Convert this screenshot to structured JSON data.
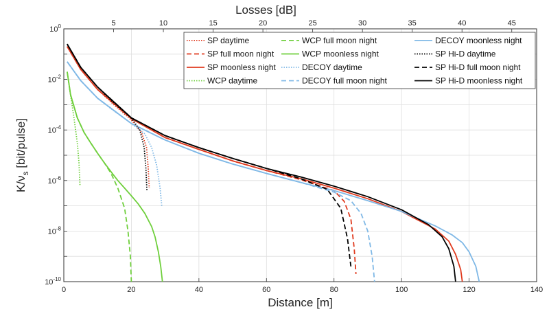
{
  "chart_data": {
    "type": "line",
    "xlabel": "Distance [m]",
    "x2label": "Losses [dB]",
    "ylabel": "K/ν",
    "ylabel_sub": "s",
    "ylabel_unit": " [bit/pulse]",
    "xlim": [
      0,
      140
    ],
    "x_ticks": [
      0,
      20,
      40,
      60,
      80,
      100,
      120,
      140
    ],
    "x2lim": [
      0,
      47.5
    ],
    "x2_ticks": [
      5,
      10,
      15,
      20,
      25,
      30,
      35,
      40,
      45
    ],
    "ylim": [
      1e-10,
      1
    ],
    "y_scale": "log",
    "y_tick_exponents": [
      0,
      -2,
      -4,
      -6,
      -8,
      -10
    ],
    "grid": true,
    "legend_position": "top-right",
    "legend_columns": 3,
    "colors": {
      "SP": "#e03a1e",
      "WCP": "#6fcf3c",
      "DECOY": "#7fb8e6",
      "HiD": "#000000"
    },
    "series": [
      {
        "name": "SP daytime",
        "color": "#e03a1e",
        "dash": "dotted",
        "x": [
          1,
          5,
          10,
          15,
          20,
          23,
          24.5,
          25,
          25.3
        ],
        "y": [
          0.2,
          0.025,
          0.004,
          0.00095,
          0.00025,
          8e-05,
          2e-05,
          3e-06,
          5e-07
        ]
      },
      {
        "name": "SP full moon night",
        "color": "#e03a1e",
        "dash": "dashed",
        "x": [
          1,
          5,
          10,
          20,
          30,
          40,
          50,
          60,
          70,
          80,
          83,
          85,
          86,
          86.5
        ],
        "y": [
          0.2,
          0.025,
          0.004,
          0.00028,
          5e-05,
          1.7e-05,
          6e-06,
          2.5e-06,
          1.1e-06,
          4e-07,
          1.5e-07,
          3e-08,
          2e-09,
          2e-10
        ]
      },
      {
        "name": "SP moonless night",
        "color": "#e03a1e",
        "dash": "solid",
        "x": [
          1,
          5,
          10,
          20,
          30,
          40,
          50,
          60,
          70,
          80,
          90,
          100,
          110,
          114,
          116,
          117.5,
          118
        ],
        "y": [
          0.2,
          0.025,
          0.004,
          0.00028,
          5e-05,
          1.7e-05,
          6e-06,
          2.5e-06,
          1.2e-06,
          5e-07,
          1.9e-07,
          6e-08,
          1.2e-08,
          4e-09,
          1.2e-09,
          3e-10,
          1e-10
        ]
      },
      {
        "name": "WCP daytime",
        "color": "#6fcf3c",
        "dash": "dotted",
        "x": [
          1,
          2,
          3,
          4,
          4.5,
          4.8
        ],
        "y": [
          0.02,
          0.0025,
          0.0003,
          3e-05,
          5e-06,
          6e-07
        ]
      },
      {
        "name": "WCP full moon night",
        "color": "#6fcf3c",
        "dash": "dashed",
        "x": [
          1,
          2,
          4,
          6,
          8,
          10,
          12,
          14,
          16,
          18,
          19,
          19.7,
          20
        ],
        "y": [
          0.02,
          0.0025,
          0.0003,
          8e-05,
          3e-05,
          1.2e-05,
          5e-06,
          1.9e-06,
          5e-07,
          8e-08,
          1e-08,
          1e-09,
          1e-10
        ]
      },
      {
        "name": "WCP moonless night",
        "color": "#6fcf3c",
        "dash": "solid",
        "x": [
          1,
          2,
          4,
          6,
          8,
          10,
          12,
          14,
          16,
          18,
          20,
          22,
          24,
          26,
          27,
          28,
          28.7,
          29.2
        ],
        "y": [
          0.02,
          0.0025,
          0.0003,
          8e-05,
          3e-05,
          1.2e-05,
          5e-06,
          2.2e-06,
          1e-06,
          5e-07,
          2.5e-07,
          1.2e-07,
          5e-08,
          1.5e-08,
          6e-09,
          1.5e-09,
          4e-10,
          1e-10
        ]
      },
      {
        "name": "DECOY daytime",
        "color": "#7fb8e6",
        "dash": "dotted",
        "x": [
          1,
          5,
          10,
          15,
          20,
          24,
          26,
          27.5,
          28.5,
          29
        ],
        "y": [
          0.05,
          0.009,
          0.0018,
          0.00055,
          0.00018,
          7e-05,
          2e-05,
          4e-06,
          5e-07,
          1e-07
        ]
      },
      {
        "name": "DECOY full moon night",
        "color": "#7fb8e6",
        "dash": "dashed",
        "x": [
          1,
          5,
          10,
          20,
          30,
          40,
          50,
          60,
          70,
          80,
          85,
          88,
          90,
          91.3,
          92
        ],
        "y": [
          0.05,
          0.009,
          0.0018,
          0.00018,
          4e-05,
          1.2e-05,
          4.5e-06,
          1.9e-06,
          8.5e-07,
          3.5e-07,
          1.6e-07,
          5e-08,
          1e-08,
          1e-09,
          1e-10
        ]
      },
      {
        "name": "DECOY moonless night",
        "color": "#7fb8e6",
        "dash": "solid",
        "x": [
          1,
          5,
          10,
          20,
          30,
          40,
          50,
          60,
          70,
          80,
          90,
          100,
          110,
          115,
          118,
          120,
          122,
          123
        ],
        "y": [
          0.05,
          0.009,
          0.0018,
          0.00018,
          4e-05,
          1.2e-05,
          4.5e-06,
          1.9e-06,
          8.5e-07,
          4e-07,
          1.6e-07,
          6e-08,
          1.6e-08,
          7e-09,
          3.5e-09,
          1.5e-09,
          4e-10,
          1e-10
        ]
      },
      {
        "name": "SP Hi-D daytime",
        "color": "#000000",
        "dash": "dotted",
        "x": [
          1,
          5,
          10,
          15,
          20,
          22.5,
          23.8,
          24.3,
          24.6
        ],
        "y": [
          0.25,
          0.03,
          0.005,
          0.0011,
          0.0003,
          0.0001,
          2e-05,
          3e-06,
          4e-07
        ]
      },
      {
        "name": "SP Hi-D full moon night",
        "color": "#000000",
        "dash": "dashed",
        "x": [
          1,
          5,
          10,
          20,
          30,
          40,
          50,
          60,
          70,
          78,
          82,
          84,
          85
        ],
        "y": [
          0.25,
          0.03,
          0.005,
          0.0003,
          6e-05,
          2e-05,
          7.5e-06,
          3e-06,
          1.2e-06,
          4.5e-07,
          8e-08,
          5e-09,
          4e-10
        ]
      },
      {
        "name": "SP Hi-D moonless night",
        "color": "#000000",
        "dash": "solid",
        "x": [
          1,
          5,
          10,
          20,
          30,
          40,
          50,
          60,
          70,
          80,
          90,
          100,
          108,
          112,
          114,
          115.5,
          116
        ],
        "y": [
          0.25,
          0.03,
          0.005,
          0.0003,
          6e-05,
          2e-05,
          7.5e-06,
          3e-06,
          1.4e-06,
          6e-07,
          2.3e-07,
          7e-08,
          1.8e-08,
          6e-09,
          2e-09,
          4e-10,
          1e-10
        ]
      }
    ]
  }
}
